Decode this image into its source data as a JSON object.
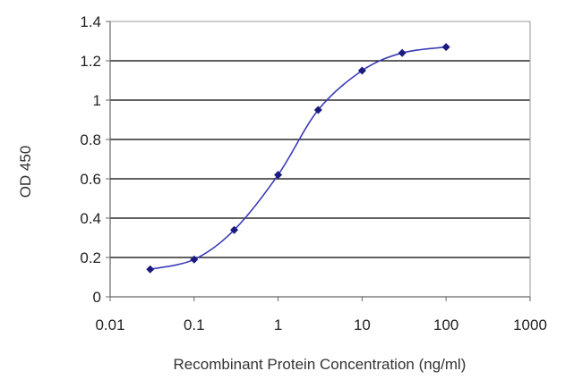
{
  "chart_data": {
    "type": "line",
    "xlabel": "Recombinant Protein Concentration (ng/ml)",
    "ylabel": "OD 450",
    "x_scale": "log",
    "xlim": [
      0.01,
      1000
    ],
    "ylim": [
      0,
      1.4
    ],
    "x_ticks": [
      "0.01",
      "0.1",
      "1",
      "10",
      "100",
      "1000"
    ],
    "y_ticks": [
      "0",
      "0.2",
      "0.4",
      "0.6",
      "0.8",
      "1",
      "1.2",
      "1.4"
    ],
    "grid": "horizontal",
    "legend": "none",
    "series": [
      {
        "x": [
          0.03,
          0.1,
          0.3,
          1,
          3,
          10,
          30,
          100
        ],
        "y": [
          0.14,
          0.19,
          0.34,
          0.62,
          0.95,
          1.15,
          1.24,
          1.27
        ]
      }
    ],
    "colors": {
      "line": "#3b3bb8",
      "marker": "#1a1a80",
      "grid": "#000000",
      "frame": "#999999"
    }
  }
}
